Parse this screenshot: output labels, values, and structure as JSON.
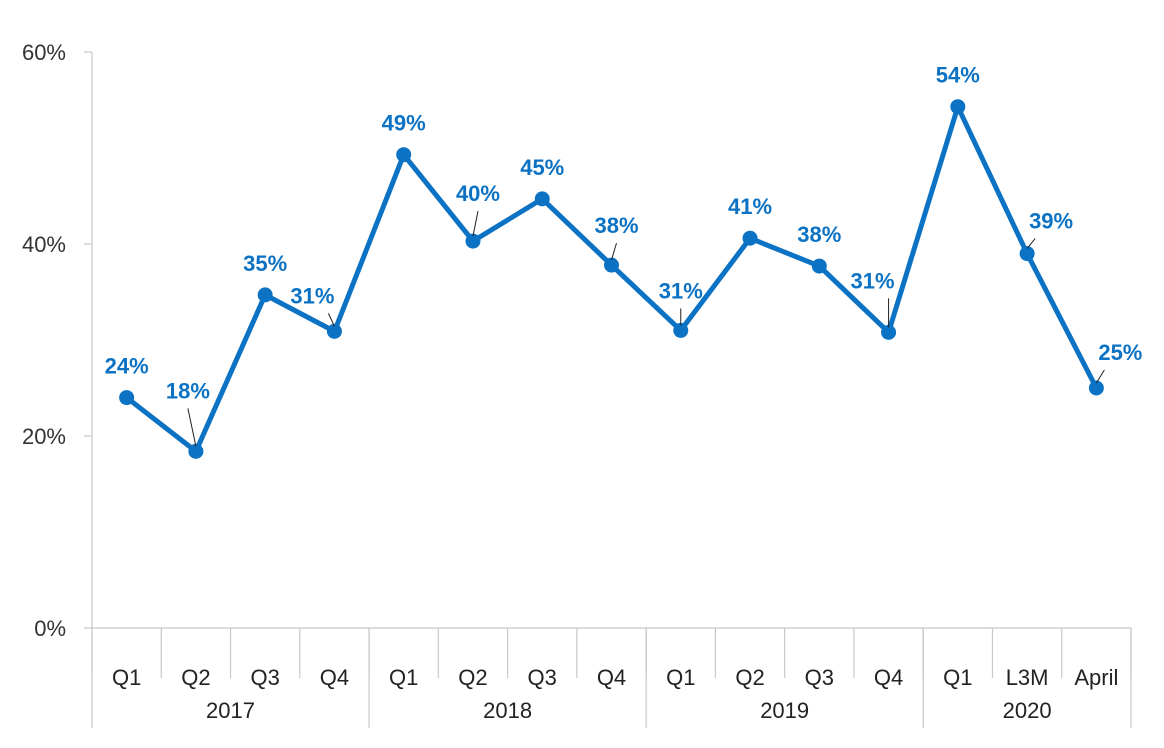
{
  "chart_data": {
    "type": "line",
    "title": "",
    "xlabel": "",
    "ylabel": "",
    "ylim": [
      0,
      60
    ],
    "y_ticks": [
      0,
      20,
      40,
      60
    ],
    "y_tick_format": "percent",
    "grid": false,
    "legend": "none",
    "series_color": "#0b72c4",
    "categories": [
      "Q1",
      "Q2",
      "Q3",
      "Q4",
      "Q1",
      "Q2",
      "Q3",
      "Q4",
      "Q1",
      "Q2",
      "Q3",
      "Q4",
      "Q1",
      "L3M",
      "April"
    ],
    "groups": [
      {
        "label": "2017",
        "count": 4
      },
      {
        "label": "2018",
        "count": 4
      },
      {
        "label": "2019",
        "count": 4
      },
      {
        "label": "2020",
        "count": 3
      }
    ],
    "series": [
      {
        "values": [
          24,
          18.4,
          34.7,
          30.9,
          49.3,
          40.3,
          44.7,
          37.8,
          31.0,
          40.6,
          37.7,
          30.8,
          54.3,
          39.0,
          25.0
        ],
        "labels": [
          "24%",
          "18%",
          "35%",
          "31%",
          "49%",
          "40%",
          "45%",
          "38%",
          "31%",
          "41%",
          "38%",
          "31%",
          "54%",
          "39%",
          "25%"
        ]
      }
    ]
  }
}
